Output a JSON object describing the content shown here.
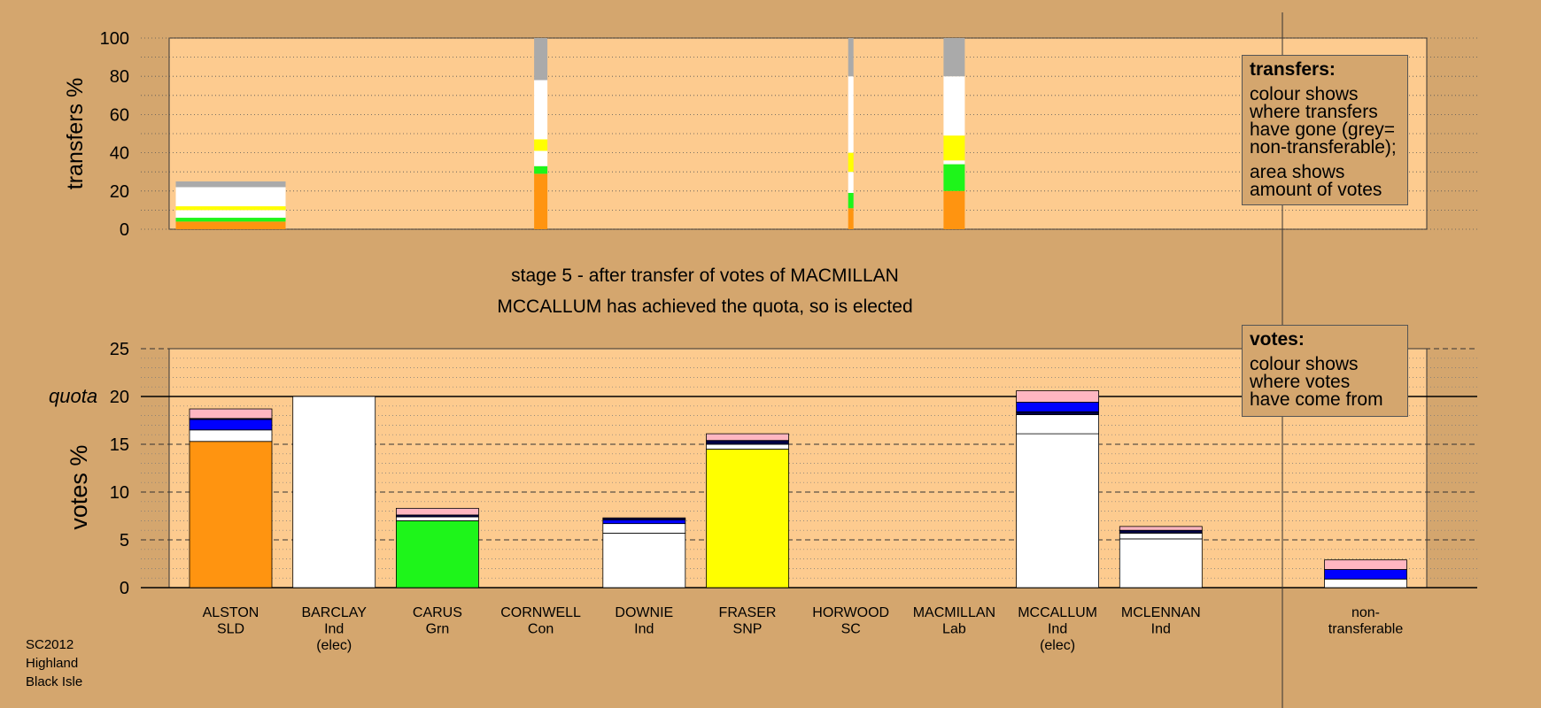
{
  "colors": {
    "background": "#d4a66e",
    "plot_area": "#fdcb8f",
    "SLD": "#ff9410",
    "Ind": "#ffffff",
    "Grn": "#1ef51a",
    "SNP": "#ffff00",
    "Lab": "#ee0000",
    "Con": "#0000ff",
    "SC": "#ffb6c1",
    "non-transferable": "#aaaaaa",
    "dark": "#000044"
  },
  "stage_text": {
    "line1": "stage 5 - after transfer of votes of MACMILLAN",
    "line2": "MCCALLUM has achieved the quota, so is elected"
  },
  "legend_transfers": {
    "title": "transfers:",
    "lines1": [
      "colour shows",
      "where transfers",
      "have gone (grey=",
      "non-transferable);"
    ],
    "lines2": [
      "area shows",
      "amount of votes"
    ]
  },
  "legend_votes": {
    "title": "votes:",
    "lines": [
      "colour shows",
      "where votes",
      "have come from"
    ]
  },
  "footer": [
    "SC2012",
    "Highland",
    "Black Isle"
  ],
  "chart_data": [
    {
      "type": "bar",
      "ylabel": "transfers %",
      "ylim": [
        0,
        100
      ],
      "yticks": [
        0,
        20,
        40,
        60,
        80,
        100
      ],
      "grid": true,
      "legend": "top-right",
      "bars": [
        {
          "candidate": "ALSTON",
          "segments": [
            {
              "color": "#ff9410",
              "value": 4
            },
            {
              "color": "#1ef51a",
              "value": 2
            },
            {
              "color": "#ffffff",
              "value": 4
            },
            {
              "color": "#ffff00",
              "value": 2
            },
            {
              "color": "#ffffff",
              "value": 10
            },
            {
              "color": "#aaaaaa",
              "value": 3
            }
          ]
        },
        {
          "candidate": "CORNWELL",
          "segments": [
            {
              "color": "#ff9410",
              "value": 29
            },
            {
              "color": "#1ef51a",
              "value": 4
            },
            {
              "color": "#ffffff",
              "value": 8
            },
            {
              "color": "#ffff00",
              "value": 6
            },
            {
              "color": "#ffffff",
              "value": 31
            },
            {
              "color": "#aaaaaa",
              "value": 22
            }
          ]
        },
        {
          "candidate": "HORWOOD",
          "segments": [
            {
              "color": "#ff9410",
              "value": 11
            },
            {
              "color": "#1ef51a",
              "value": 8
            },
            {
              "color": "#ffffff",
              "value": 11
            },
            {
              "color": "#ffff00",
              "value": 10
            },
            {
              "color": "#ffffff",
              "value": 40
            },
            {
              "color": "#aaaaaa",
              "value": 20
            }
          ]
        },
        {
          "candidate": "MACMILLAN",
          "segments": [
            {
              "color": "#ff9410",
              "value": 20
            },
            {
              "color": "#1ef51a",
              "value": 14
            },
            {
              "color": "#ffffff",
              "value": 2
            },
            {
              "color": "#ffff00",
              "value": 13
            },
            {
              "color": "#ffffff",
              "value": 31
            },
            {
              "color": "#aaaaaa",
              "value": 20
            }
          ]
        }
      ]
    },
    {
      "type": "bar",
      "ylabel": "votes %",
      "ylim": [
        0,
        25
      ],
      "yticks": [
        0,
        5,
        10,
        15,
        20,
        25
      ],
      "quota": 20,
      "quota_label": "quota",
      "grid": true,
      "legend": "top-right",
      "candidates": [
        {
          "name": "ALSTON",
          "party": "SLD",
          "note": "",
          "segments": [
            {
              "color": "#ff9410",
              "value": 15.3
            },
            {
              "color": "#ffffff",
              "value": 1.2
            },
            {
              "color": "#0000ff",
              "value": 1.1
            },
            {
              "color": "#000044",
              "value": 0.1
            },
            {
              "color": "#ffb6c1",
              "value": 1.0
            }
          ]
        },
        {
          "name": "BARCLAY",
          "party": "Ind",
          "note": "(elec)",
          "segments": [
            {
              "color": "#ffffff",
              "value": 20.0
            }
          ]
        },
        {
          "name": "CARUS",
          "party": "Grn",
          "note": "",
          "segments": [
            {
              "color": "#1ef51a",
              "value": 7.0
            },
            {
              "color": "#ffffff",
              "value": 0.4
            },
            {
              "color": "#000044",
              "value": 0.2
            },
            {
              "color": "#ffb6c1",
              "value": 0.7
            }
          ]
        },
        {
          "name": "CORNWELL",
          "party": "Con",
          "note": "",
          "segments": []
        },
        {
          "name": "DOWNIE",
          "party": "Ind",
          "note": "",
          "segments": [
            {
              "color": "#ffffff",
              "value": 5.7
            },
            {
              "color": "#ffffff",
              "value": 1.0
            },
            {
              "color": "#0000ff",
              "value": 0.4
            },
            {
              "color": "#000044",
              "value": 0.2
            }
          ]
        },
        {
          "name": "FRASER",
          "party": "SNP",
          "note": "",
          "segments": [
            {
              "color": "#ffff00",
              "value": 14.5
            },
            {
              "color": "#ffffff",
              "value": 0.5
            },
            {
              "color": "#000044",
              "value": 0.4
            },
            {
              "color": "#ffb6c1",
              "value": 0.7
            }
          ]
        },
        {
          "name": "HORWOOD",
          "party": "SC",
          "note": "",
          "segments": []
        },
        {
          "name": "MACMILLAN",
          "party": "Lab",
          "note": "",
          "segments": []
        },
        {
          "name": "MCCALLUM",
          "party": "Ind",
          "note": "(elec)",
          "segments": [
            {
              "color": "#ffffff",
              "value": 16.1
            },
            {
              "color": "#ffffff",
              "value": 2.0
            },
            {
              "color": "#000044",
              "value": 0.3
            },
            {
              "color": "#0000ff",
              "value": 1.0
            },
            {
              "color": "#ffb6c1",
              "value": 1.2
            }
          ]
        },
        {
          "name": "MCLENNAN",
          "party": "Ind",
          "note": "",
          "segments": [
            {
              "color": "#ffffff",
              "value": 5.1
            },
            {
              "color": "#ffffff",
              "value": 0.6
            },
            {
              "color": "#000044",
              "value": 0.3
            },
            {
              "color": "#ffb6c1",
              "value": 0.4
            }
          ]
        },
        {
          "name": "non-",
          "party": "transferable",
          "note": "",
          "segments": [
            {
              "color": "#ffffff",
              "value": 0.9
            },
            {
              "color": "#0000ff",
              "value": 1.0
            },
            {
              "color": "#ffb6c1",
              "value": 1.0
            }
          ]
        }
      ]
    }
  ]
}
